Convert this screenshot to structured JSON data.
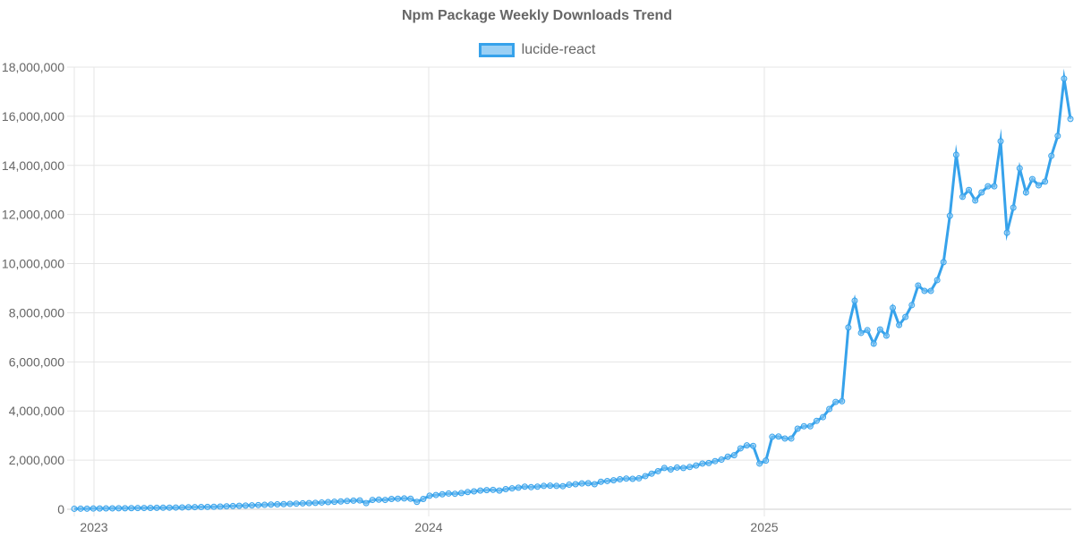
{
  "chart_data": {
    "type": "line",
    "title": "Npm Package Weekly Downloads Trend",
    "xlabel": "",
    "ylabel": "",
    "ylim": [
      0,
      18000000
    ],
    "yticks": [
      0,
      2000000,
      4000000,
      6000000,
      8000000,
      10000000,
      12000000,
      14000000,
      16000000,
      18000000
    ],
    "ytick_labels": [
      "0",
      "2,000,000",
      "4,000,000",
      "6,000,000",
      "8,000,000",
      "10,000,000",
      "12,000,000",
      "14,000,000",
      "16,000,000",
      "18,000,000"
    ],
    "xtick_labels": [
      "2023",
      "2024",
      "2025"
    ],
    "grid": true,
    "legend_position": "top",
    "series": [
      {
        "name": "lucide-react",
        "color": "#36a2eb",
        "fill": "#9ad0f5",
        "values": [
          20000,
          25000,
          25000,
          30000,
          32000,
          35000,
          38000,
          40000,
          42000,
          45000,
          48000,
          52000,
          55000,
          58000,
          62000,
          66000,
          70000,
          75000,
          80000,
          85000,
          90000,
          95000,
          100000,
          110000,
          120000,
          130000,
          140000,
          150000,
          160000,
          170000,
          180000,
          190000,
          200000,
          210000,
          220000,
          230000,
          240000,
          250000,
          260000,
          275000,
          290000,
          305000,
          320000,
          335000,
          350000,
          360000,
          250000,
          380000,
          390000,
          380000,
          420000,
          430000,
          440000,
          430000,
          300000,
          420000,
          550000,
          580000,
          610000,
          640000,
          630000,
          660000,
          700000,
          730000,
          760000,
          780000,
          790000,
          760000,
          820000,
          850000,
          880000,
          920000,
          900000,
          920000,
          950000,
          960000,
          950000,
          940000,
          1000000,
          1020000,
          1050000,
          1060000,
          1020000,
          1120000,
          1150000,
          1180000,
          1220000,
          1250000,
          1240000,
          1260000,
          1350000,
          1450000,
          1550000,
          1680000,
          1620000,
          1700000,
          1680000,
          1720000,
          1780000,
          1860000,
          1880000,
          1960000,
          2020000,
          2140000,
          2200000,
          2480000,
          2600000,
          2580000,
          1860000,
          1980000,
          2950000,
          2960000,
          2880000,
          2880000,
          3280000,
          3380000,
          3380000,
          3600000,
          3750000,
          4080000,
          4370000,
          4400000,
          7400000,
          8490000,
          7180000,
          7290000,
          6740000,
          7320000,
          7070000,
          8200000,
          7500000,
          7830000,
          8310000,
          9110000,
          8890000,
          8890000,
          9330000,
          10060000,
          11950000,
          14430000,
          12720000,
          13000000,
          12570000,
          12900000,
          13150000,
          13150000,
          14980000,
          11260000,
          12280000,
          13880000,
          12900000,
          13440000,
          13190000,
          13340000,
          14390000,
          15200000,
          17530000,
          15890000
        ]
      }
    ]
  }
}
